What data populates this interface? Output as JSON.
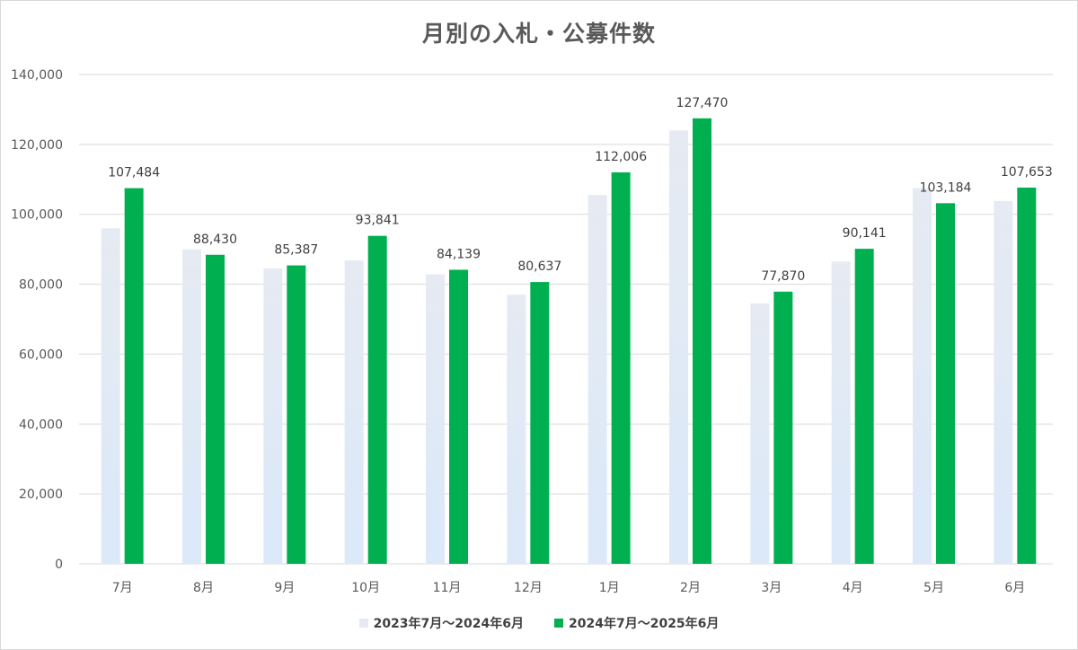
{
  "colors": {
    "series_prev": "#e4e9f2",
    "series_prev_fade": "#dbe8f8",
    "series_curr": "#00b050",
    "grid": "#d9d9d9",
    "axis_text": "#595959",
    "label_text": "#404040"
  },
  "chart_data": {
    "type": "bar",
    "title": "月別の入札・公募件数",
    "xlabel": "",
    "ylabel": "",
    "ylim": [
      0,
      140000
    ],
    "yticks": [
      0,
      20000,
      40000,
      60000,
      80000,
      100000,
      120000,
      140000
    ],
    "ytick_labels": [
      "0",
      "20,000",
      "40,000",
      "60,000",
      "80,000",
      "100,000",
      "120,000",
      "140,000"
    ],
    "grid": true,
    "legend_position": "bottom",
    "categories": [
      "7月",
      "8月",
      "9月",
      "10月",
      "11月",
      "12月",
      "1月",
      "2月",
      "3月",
      "4月",
      "5月",
      "6月"
    ],
    "series": [
      {
        "name": "2023年7月～2024年6月",
        "values": [
          96000,
          90000,
          84500,
          86800,
          82800,
          77000,
          105500,
          124000,
          74500,
          86500,
          107500,
          103800
        ]
      },
      {
        "name": "2024年7月～2025年6月",
        "values": [
          107484,
          88430,
          85387,
          93841,
          84139,
          80637,
          112006,
          127470,
          77870,
          90141,
          103184,
          107653
        ],
        "data_labels": [
          "107,484",
          "88,430",
          "85,387",
          "93,841",
          "84,139",
          "80,637",
          "112,006",
          "127,470",
          "77,870",
          "90,141",
          "103,184",
          "107,653"
        ]
      }
    ]
  }
}
